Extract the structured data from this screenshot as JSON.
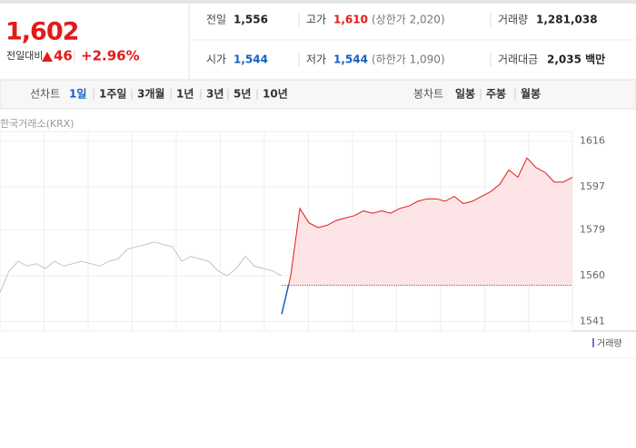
{
  "header": {
    "price": "1,602",
    "change_label": "전일대비",
    "change": "46",
    "change_pct": "+2.96%"
  },
  "quote": {
    "rows": [
      [
        {
          "label": "전일",
          "value": "1,556",
          "color": "#222222"
        },
        {
          "label": "고가",
          "value": "1,610",
          "note": "(상한가 2,020)",
          "color": "#e21a1a"
        },
        {
          "label": "거래량",
          "value": "1,281,038",
          "color": "#222222"
        }
      ],
      [
        {
          "label": "시가",
          "value": "1,544",
          "color": "#1261c4"
        },
        {
          "label": "저가",
          "value": "1,544",
          "note": "(하한가 1,090)",
          "color": "#1261c4"
        },
        {
          "label": "거래대금",
          "value": "2,035 백만",
          "color": "#222222"
        }
      ]
    ]
  },
  "tabs": {
    "period_label": "선차트",
    "periods": [
      "1일",
      "1주일",
      "3개월",
      "1년",
      "3년",
      "5년",
      "10년"
    ],
    "candle_label": "봉차트",
    "candles": [
      "일봉",
      "주봉",
      "월봉"
    ]
  },
  "chart_data": {
    "type": "line",
    "source": "한국거래소(KRX)",
    "volume_label": "거래량",
    "ylim": [
      1537,
      1620
    ],
    "yticks": [
      1541,
      1560,
      1579,
      1597,
      1616
    ],
    "grid": true,
    "reference": 1556,
    "down_color": "#1261c4",
    "fill": "#fde4e6",
    "series": [
      {
        "color": "#c4c4c4",
        "values": [
          1553,
          1562,
          1566,
          1564,
          1565,
          1563,
          1566,
          1564,
          1565,
          1566,
          1565,
          1564,
          1566,
          1567,
          1571,
          1572,
          1573,
          1574,
          1573,
          1572,
          1566,
          1568,
          1567,
          1566,
          1562,
          1560,
          1563,
          1568,
          1564,
          1563,
          1562,
          1560,
          null,
          null,
          null,
          null,
          null,
          null,
          null,
          null,
          null,
          null,
          null,
          null,
          null,
          null,
          null,
          null,
          null,
          null,
          null,
          null,
          null,
          null,
          null,
          null,
          null,
          null,
          null,
          null,
          null,
          null,
          null,
          null
        ]
      },
      {
        "color": "#e21a1a",
        "values": [
          null,
          null,
          null,
          null,
          null,
          null,
          null,
          null,
          null,
          null,
          null,
          null,
          null,
          null,
          null,
          null,
          null,
          null,
          null,
          null,
          null,
          null,
          null,
          null,
          null,
          null,
          null,
          null,
          null,
          null,
          null,
          1544,
          1560,
          1588,
          1582,
          1580,
          1581,
          1583,
          1584,
          1585,
          1587,
          1586,
          1587,
          1586,
          1588,
          1589,
          1591,
          1592,
          1592,
          1591,
          1593,
          1590,
          1591,
          1593,
          1595,
          1598,
          1604,
          1601,
          1609,
          1605,
          1603,
          1599,
          1599,
          1601
        ]
      }
    ]
  }
}
